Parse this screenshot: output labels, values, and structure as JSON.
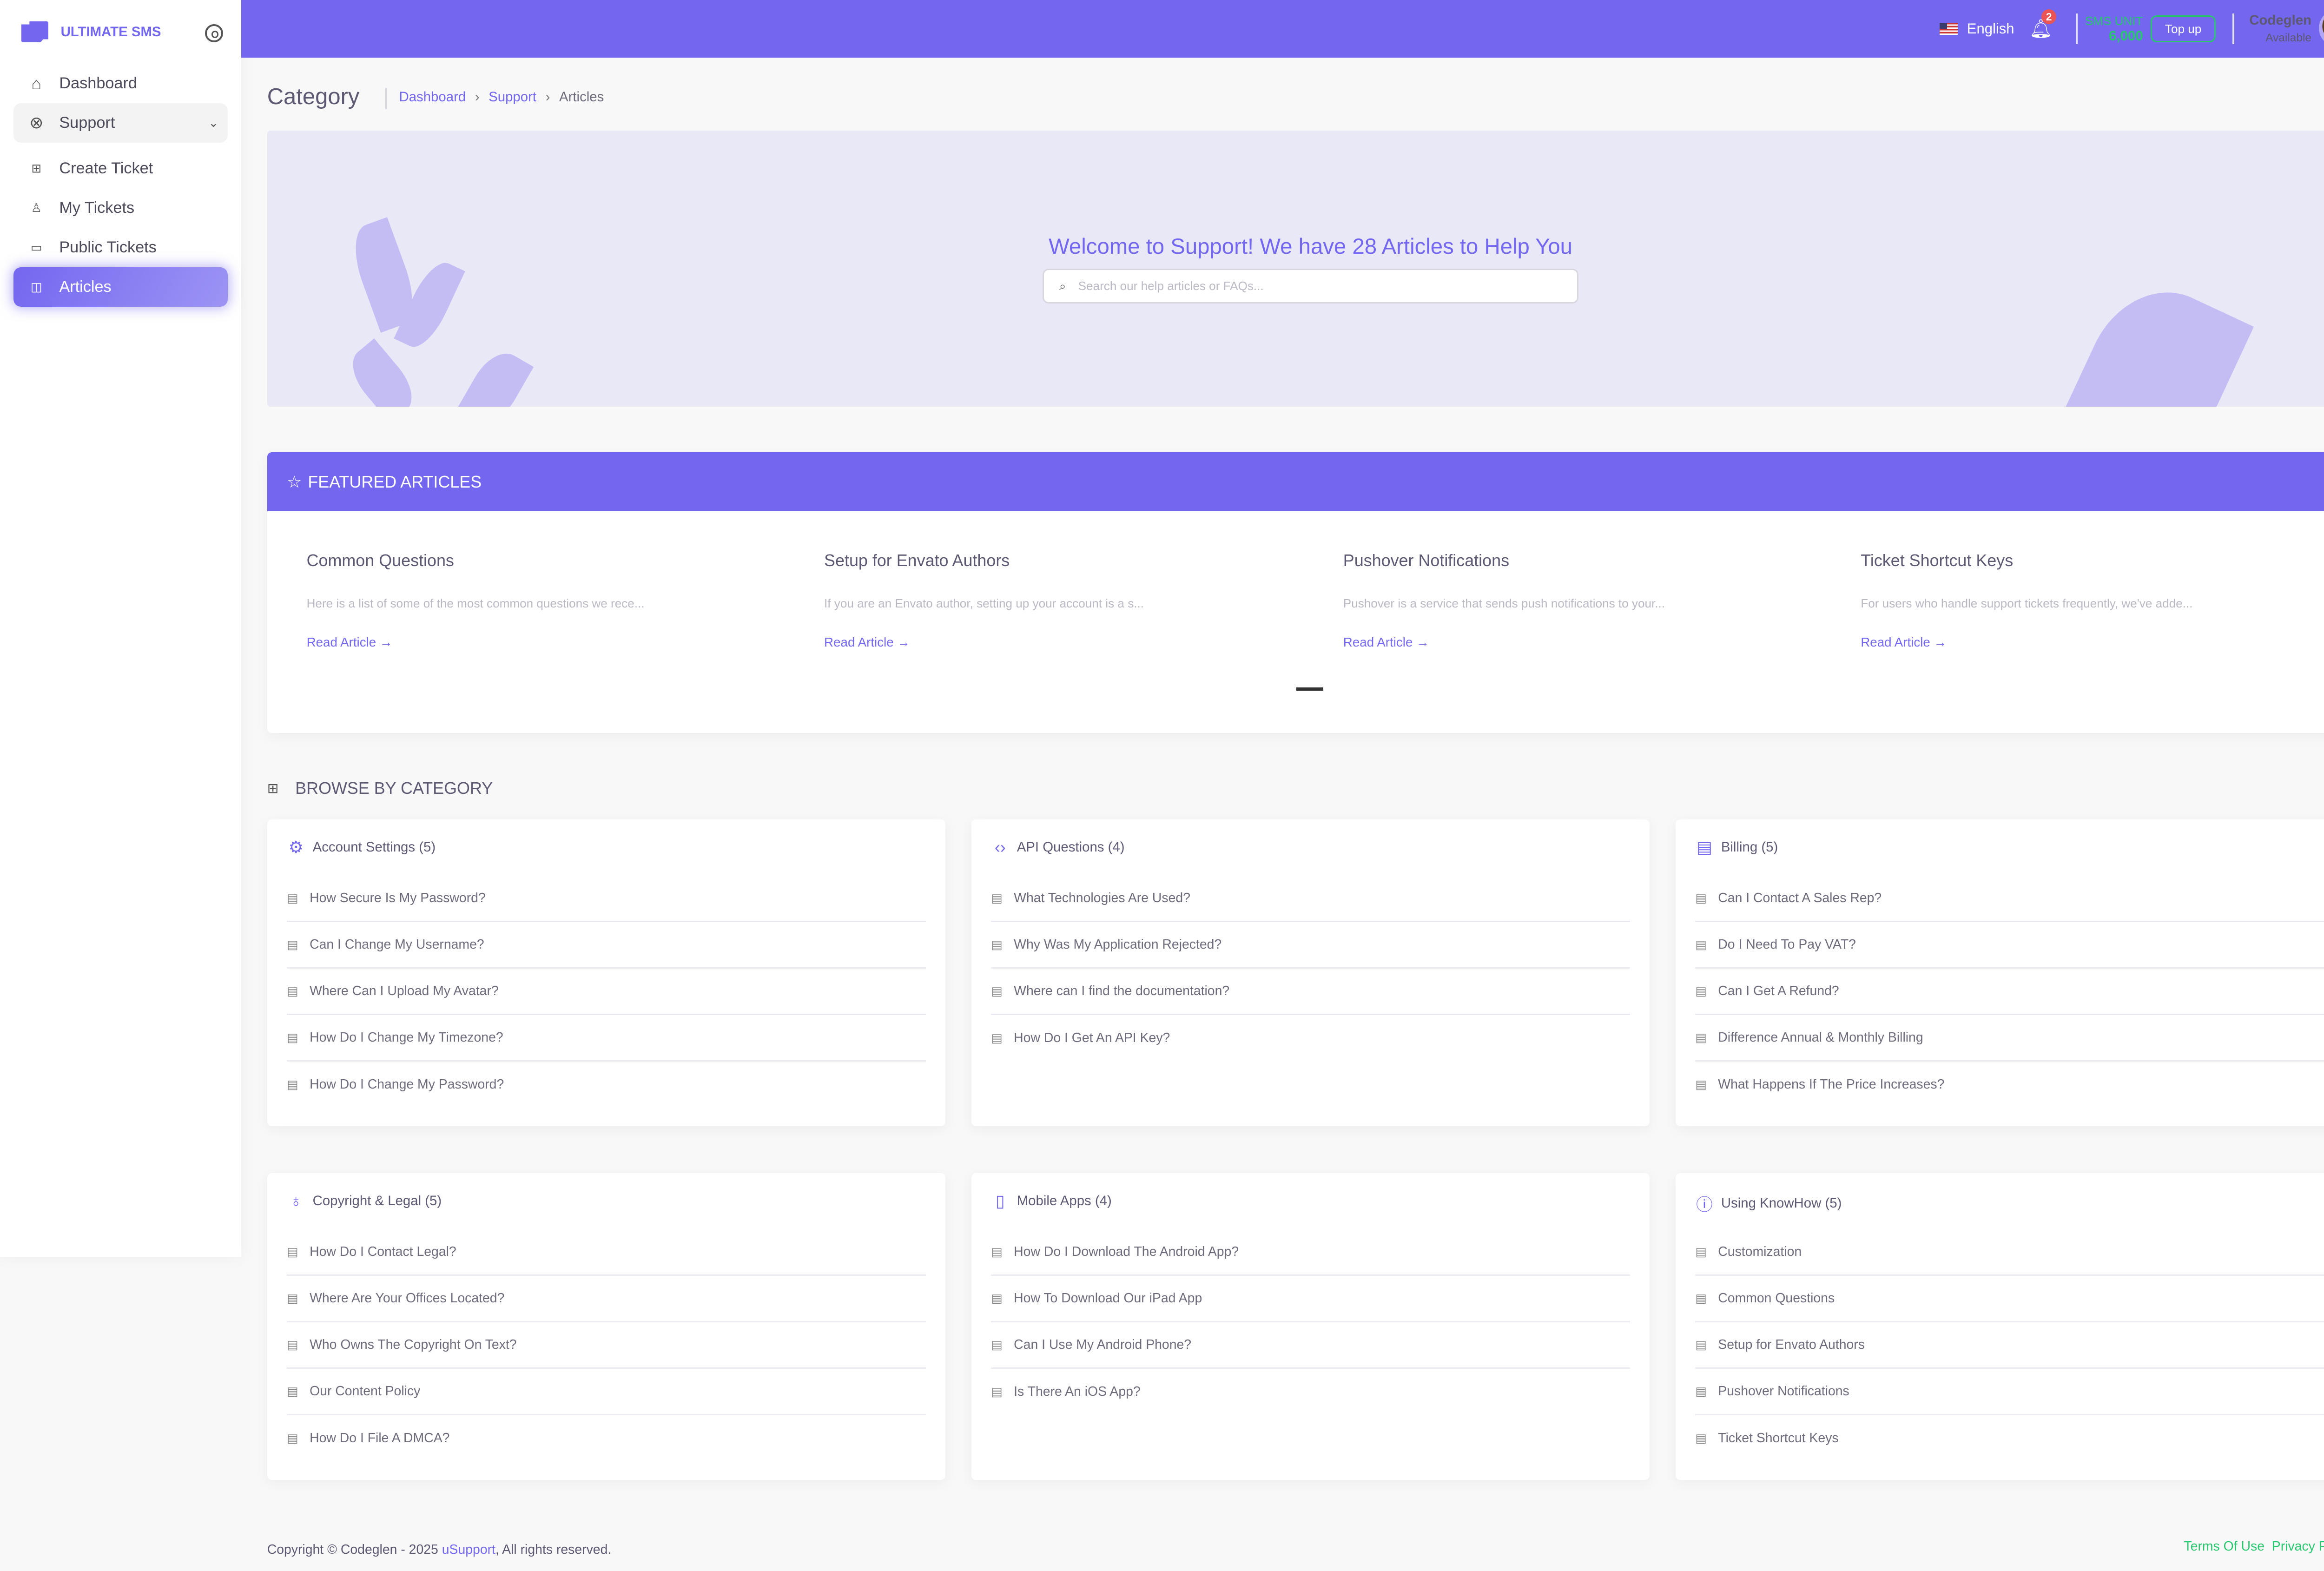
{
  "sidebar": {
    "brand": "ULTIMATE SMS",
    "items": [
      {
        "label": "Dashboard",
        "icon": "home-icon"
      },
      {
        "label": "Support",
        "icon": "lifebuoy-icon"
      },
      {
        "label": "Create Ticket",
        "icon": "plus-square-icon"
      },
      {
        "label": "My Tickets",
        "icon": "user-check-icon"
      },
      {
        "label": "Public Tickets",
        "icon": "message-square-icon"
      },
      {
        "label": "Articles",
        "icon": "book-open-icon"
      }
    ]
  },
  "header": {
    "language": "English",
    "notification_count": "2",
    "sms_label": "SMS UNIT",
    "sms_value": "6,000",
    "topup": "Top up",
    "user_name": "Codeglen",
    "user_status": "Available"
  },
  "page": {
    "title": "Category",
    "breadcrumb": [
      "Dashboard",
      "Support",
      "Articles"
    ]
  },
  "banner": {
    "title": "Welcome to Support! We have 28 Articles to Help You",
    "search_placeholder": "Search our help articles or FAQs..."
  },
  "featured": {
    "heading": "FEATURED ARTICLES",
    "read_label": "Read Article →",
    "articles": [
      {
        "title": "Common Questions",
        "excerpt": "Here is a list of some of the most common questions we rece..."
      },
      {
        "title": "Setup for Envato Authors",
        "excerpt": "If you are an Envato author, setting up your account is a s..."
      },
      {
        "title": "Pushover Notifications",
        "excerpt": "Pushover is a service that sends push notifications to your..."
      },
      {
        "title": "Ticket Shortcut Keys",
        "excerpt": "For users who handle support tickets frequently, we've adde..."
      }
    ]
  },
  "browse": {
    "heading": "BROWSE BY CATEGORY",
    "categories": [
      {
        "title": "Account Settings (5)",
        "icon": "gear-icon",
        "items": [
          "How Secure Is My Password?",
          "Can I Change My Username?",
          "Where Can I Upload My Avatar?",
          "How Do I Change My Timezone?",
          "How Do I Change My Password?"
        ]
      },
      {
        "title": "API Questions (4)",
        "icon": "code-icon",
        "items": [
          "What Technologies Are Used?",
          "Why Was My Application Rejected?",
          "Where can I find the documentation?",
          "How Do I Get An API Key?"
        ]
      },
      {
        "title": "Billing (5)",
        "icon": "file-text-icon",
        "items": [
          "Can I Contact A Sales Rep?",
          "Do I Need To Pay VAT?",
          "Can I Get A Refund?",
          "Difference Annual & Monthly Billing",
          "What Happens If The Price Increases?"
        ]
      },
      {
        "title": "Copyright & Legal (5)",
        "icon": "award-icon",
        "items": [
          "How Do I Contact Legal?",
          "Where Are Your Offices Located?",
          "Who Owns The Copyright On Text?",
          "Our Content Policy",
          "How Do I File A DMCA?"
        ]
      },
      {
        "title": "Mobile Apps (4)",
        "icon": "smartphone-icon",
        "items": [
          "How Do I Download The Android App?",
          "How To Download Our iPad App",
          "Can I Use My Android Phone?",
          "Is There An iOS App?"
        ]
      },
      {
        "title": "Using KnowHow (5)",
        "icon": "help-circle-icon",
        "items": [
          "Customization",
          "Common Questions",
          "Setup for Envato Authors",
          "Pushover Notifications",
          "Ticket Shortcut Keys"
        ]
      }
    ]
  },
  "footer": {
    "copyright": "Copyright © Codeglen - 2025",
    "brand_link": "uSupport",
    "rights": ", All rights reserved.",
    "terms": "Terms Of Use",
    "privacy": "Privacy Policy"
  },
  "colors": {
    "primary": "#7367f0",
    "success": "#28c76f",
    "danger": "#ea5455"
  }
}
